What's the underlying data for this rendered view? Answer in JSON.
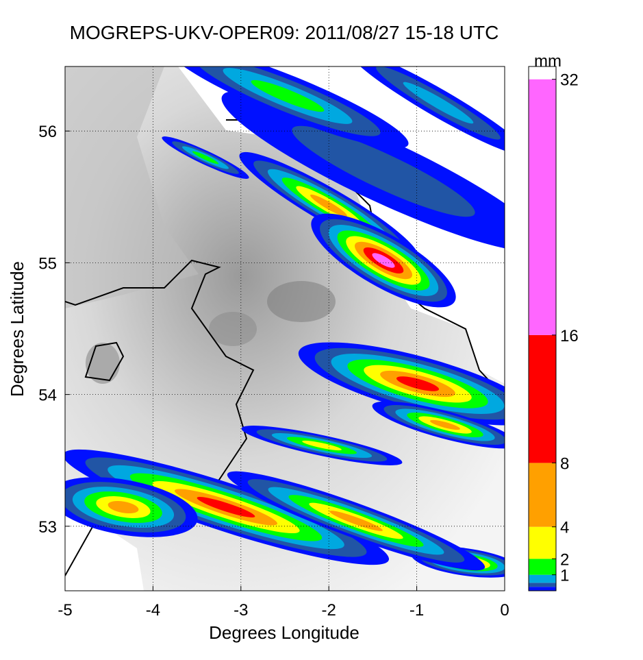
{
  "map": {
    "title": "MOGREPS-UKV-OPER09: 2011/08/27 15-18 UTC",
    "xlabel": "Degrees Longitude",
    "ylabel": "Degrees Latitude",
    "xlim": [
      -5,
      0
    ],
    "ylim": [
      52.51,
      56.49
    ],
    "xticks": [
      -5,
      -4,
      -3,
      -2,
      -1,
      0
    ],
    "yticks": [
      53,
      54,
      55,
      56
    ],
    "grid": true,
    "colorbar": {
      "unit": "mm",
      "lim": [
        0,
        32.8
      ],
      "ticks": [
        1,
        2,
        4,
        8,
        16,
        32
      ],
      "bounds": [
        0,
        0.25,
        0.5,
        1,
        2,
        4,
        8,
        16,
        32,
        32.8
      ],
      "colors": [
        "#0010ff",
        "#2155a5",
        "#00a8e0",
        "#00ff00",
        "#ffff00",
        "#ffa000",
        "#ff0000",
        "#ff66ff",
        "#ffffff"
      ]
    }
  }
}
